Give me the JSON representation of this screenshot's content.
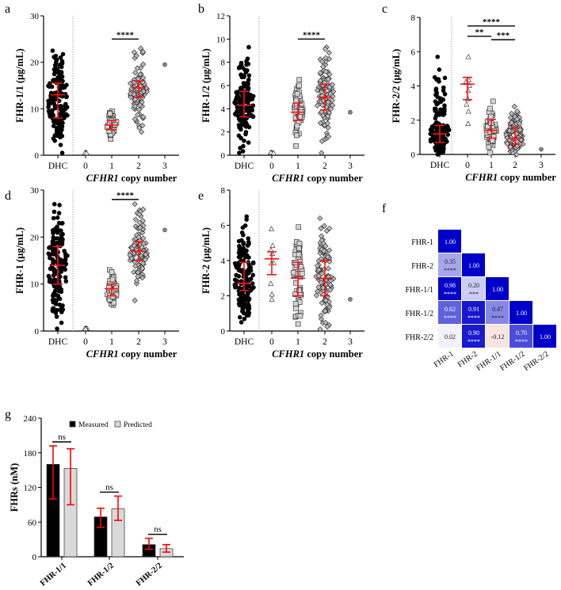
{
  "chart_data": [
    {
      "type": "scatter",
      "panel": "a",
      "ylabel": "FHR-1/1 (µg/mL)",
      "xlabel_italic": "CFHR1",
      "xlabel_rest": " copy number",
      "ylim": [
        0,
        30
      ],
      "yticks": [
        0,
        10,
        20,
        30
      ],
      "categories": [
        "DHC",
        "0",
        "1",
        "2",
        "3"
      ],
      "groups": [
        {
          "name": "DHC",
          "marker": "circle",
          "n": 160,
          "median": 13,
          "q1": 8,
          "q3": 15.5,
          "min": 0.5,
          "max": 22.5
        },
        {
          "name": "0",
          "marker": "triangle",
          "n": 9,
          "median": 0.5,
          "q1": 0.5,
          "q3": 0.5,
          "min": 0.4,
          "max": 0.6
        },
        {
          "name": "1",
          "marker": "square",
          "n": 50,
          "median": 6.5,
          "q1": 5.5,
          "q3": 7.5,
          "min": 3.5,
          "max": 9.5
        },
        {
          "name": "2",
          "marker": "diamond",
          "n": 110,
          "median": 14.5,
          "q1": 12.5,
          "q3": 16,
          "min": 5,
          "max": 23
        },
        {
          "name": "3",
          "marker": "dot",
          "n": 1,
          "median": 19.5,
          "q1": 19.5,
          "q3": 19.5,
          "min": 19.5,
          "max": 19.5
        }
      ],
      "significance": [
        {
          "from": "1",
          "to": "2",
          "label": "****",
          "y": 25
        }
      ]
    },
    {
      "type": "scatter",
      "panel": "b",
      "ylabel": "FHR-1/2 (µg/mL)",
      "xlabel_italic": "CFHR1",
      "xlabel_rest": " copy number",
      "ylim": [
        0,
        12
      ],
      "yticks": [
        0,
        2,
        4,
        6,
        8,
        10,
        12
      ],
      "categories": [
        "DHC",
        "0",
        "1",
        "2",
        "3"
      ],
      "groups": [
        {
          "name": "DHC",
          "marker": "circle",
          "n": 160,
          "median": 4.3,
          "q1": 3.3,
          "q3": 5.5,
          "min": 0.2,
          "max": 9.3
        },
        {
          "name": "0",
          "marker": "triangle",
          "n": 9,
          "median": 0.2,
          "q1": 0.2,
          "q3": 0.2,
          "min": 0.15,
          "max": 0.25
        },
        {
          "name": "1",
          "marker": "square",
          "n": 50,
          "median": 3.7,
          "q1": 3.0,
          "q3": 4.5,
          "min": 0.8,
          "max": 6.5
        },
        {
          "name": "2",
          "marker": "diamond",
          "n": 110,
          "median": 5.0,
          "q1": 3.9,
          "q3": 6.1,
          "min": 0.2,
          "max": 9.3
        },
        {
          "name": "3",
          "marker": "dot",
          "n": 1,
          "median": 3.7,
          "q1": 3.7,
          "q3": 3.7,
          "min": 3.7,
          "max": 3.7
        }
      ],
      "significance": [
        {
          "from": "1",
          "to": "2",
          "label": "****",
          "y": 10
        }
      ]
    },
    {
      "type": "scatter",
      "panel": "c",
      "ylabel": "FHR-2/2 (µg/mL)",
      "xlabel_italic": "CFHR1",
      "xlabel_rest": " copy number",
      "ylim": [
        0,
        8
      ],
      "yticks": [
        0,
        2,
        4,
        6,
        8
      ],
      "categories": [
        "DHC",
        "0",
        "1",
        "2",
        "3"
      ],
      "groups": [
        {
          "name": "DHC",
          "marker": "circle",
          "n": 160,
          "median": 1.2,
          "q1": 0.7,
          "q3": 1.7,
          "min": 0,
          "max": 5.7
        },
        {
          "name": "0",
          "marker": "triangle",
          "n": 9,
          "median": 4.1,
          "q1": 3.2,
          "q3": 4.5,
          "min": 1.8,
          "max": 5.7
        },
        {
          "name": "1",
          "marker": "square",
          "n": 50,
          "median": 1.4,
          "q1": 0.95,
          "q3": 2.05,
          "min": 0.1,
          "max": 3.1
        },
        {
          "name": "2",
          "marker": "diamond",
          "n": 110,
          "median": 0.95,
          "q1": 0.6,
          "q3": 1.55,
          "min": 0,
          "max": 2.8
        },
        {
          "name": "3",
          "marker": "dot",
          "n": 1,
          "median": 0.3,
          "q1": 0.3,
          "q3": 0.3,
          "min": 0.3,
          "max": 0.3
        }
      ],
      "significance": [
        {
          "from": "0",
          "to": "2",
          "label": "****",
          "y": 7.5
        },
        {
          "from": "0",
          "to": "1",
          "label": "**",
          "y": 6.9
        },
        {
          "from": "1",
          "to": "2",
          "label": "***",
          "y": 6.7
        }
      ]
    },
    {
      "type": "scatter",
      "panel": "d",
      "ylabel": "FHR-1 (µg/mL)",
      "xlabel_italic": "CFHR1",
      "xlabel_rest": " copy number",
      "ylim": [
        0,
        30
      ],
      "yticks": [
        0,
        10,
        20,
        30
      ],
      "categories": [
        "DHC",
        "0",
        "1",
        "2",
        "3"
      ],
      "groups": [
        {
          "name": "DHC",
          "marker": "circle",
          "n": 160,
          "median": 14,
          "q1": 10,
          "q3": 18,
          "min": 0.5,
          "max": 27
        },
        {
          "name": "0",
          "marker": "triangle",
          "n": 9,
          "median": 0.5,
          "q1": 0.5,
          "q3": 0.5,
          "min": 0.4,
          "max": 0.6
        },
        {
          "name": "1",
          "marker": "square",
          "n": 50,
          "median": 9,
          "q1": 7.5,
          "q3": 10,
          "min": 5.5,
          "max": 13
        },
        {
          "name": "2",
          "marker": "diamond",
          "n": 110,
          "median": 17,
          "q1": 15,
          "q3": 19,
          "min": 6.5,
          "max": 27
        },
        {
          "name": "3",
          "marker": "dot",
          "n": 1,
          "median": 21.5,
          "q1": 21.5,
          "q3": 21.5,
          "min": 21.5,
          "max": 21.5
        }
      ],
      "significance": [
        {
          "from": "1",
          "to": "2",
          "label": "****",
          "y": 28
        }
      ]
    },
    {
      "type": "scatter",
      "panel": "e",
      "ylabel": "FHR-2 (µg/mL)",
      "xlabel_italic": "CFHR1",
      "xlabel_rest": " copy number",
      "ylim": [
        0,
        8
      ],
      "yticks": [
        0,
        2,
        4,
        6,
        8
      ],
      "categories": [
        "DHC",
        "0",
        "1",
        "2",
        "3"
      ],
      "groups": [
        {
          "name": "DHC",
          "marker": "circle",
          "n": 160,
          "median": 2.7,
          "q1": 2.3,
          "q3": 3.9,
          "min": 0.5,
          "max": 6.5
        },
        {
          "name": "0",
          "marker": "triangle",
          "n": 9,
          "median": 4.1,
          "q1": 3.2,
          "q3": 4.5,
          "min": 1.8,
          "max": 5.8
        },
        {
          "name": "1",
          "marker": "square",
          "n": 50,
          "median": 3.0,
          "q1": 2.0,
          "q3": 3.9,
          "min": 0.4,
          "max": 5.9
        },
        {
          "name": "2",
          "marker": "diamond",
          "n": 110,
          "median": 3.0,
          "q1": 2.0,
          "q3": 4.0,
          "min": 0.1,
          "max": 6.4
        },
        {
          "name": "3",
          "marker": "dot",
          "n": 1,
          "median": 1.8,
          "q1": 1.8,
          "q3": 1.8,
          "min": 1.8,
          "max": 1.8
        }
      ],
      "significance": []
    },
    {
      "type": "heatmap",
      "panel": "f",
      "labels": [
        "FHR-1",
        "FHR-2",
        "FHR-1/1",
        "FHR-1/2",
        "FHR-2/2"
      ],
      "values": [
        [
          1.0
        ],
        [
          0.35,
          1.0
        ],
        [
          0.98,
          0.2,
          1.0
        ],
        [
          0.62,
          0.91,
          0.47,
          1.0
        ],
        [
          0.02,
          0.9,
          -0.12,
          0.7,
          1.0
        ]
      ],
      "value_labels": [
        [
          "1.00"
        ],
        [
          "0.35",
          "1.00"
        ],
        [
          "0.98",
          "0.20",
          "1.00"
        ],
        [
          "0.62",
          "0.91",
          "0.47",
          "1.00"
        ],
        [
          "0.02",
          "0.90",
          "-0.12",
          "0.70",
          "1.00"
        ]
      ],
      "stars": [
        [
          ""
        ],
        [
          "****",
          ""
        ],
        [
          "****",
          "***",
          ""
        ],
        [
          "****",
          "****",
          "****",
          ""
        ],
        [
          "",
          "****",
          "",
          "****",
          ""
        ]
      ],
      "colors": {
        "positive": "#0000c8",
        "negative": "#d07060"
      }
    },
    {
      "type": "bar",
      "panel": "g",
      "ylabel": "FHRs (nM)",
      "ylim": [
        0,
        240
      ],
      "yticks": [
        0,
        60,
        120,
        180,
        240
      ],
      "categories": [
        "FHR-1/1",
        "FHR-1/2",
        "FHR-2/2"
      ],
      "series": [
        {
          "name": "Measured",
          "color": "#000000",
          "values": [
            160,
            69,
            21
          ],
          "err_low": [
            100,
            51,
            13
          ],
          "err_high": [
            192,
            84,
            32
          ]
        },
        {
          "name": "Predicted",
          "color": "#d9d9d9",
          "values": [
            153,
            83,
            14
          ],
          "err_low": [
            90,
            63,
            8
          ],
          "err_high": [
            187,
            105,
            21
          ]
        }
      ],
      "significance": [
        "ns",
        "ns",
        "ns"
      ],
      "legend": "top-right",
      "error_color": "#ff0000"
    }
  ],
  "panel_letters": [
    "a",
    "b",
    "c",
    "d",
    "e",
    "f",
    "g"
  ]
}
